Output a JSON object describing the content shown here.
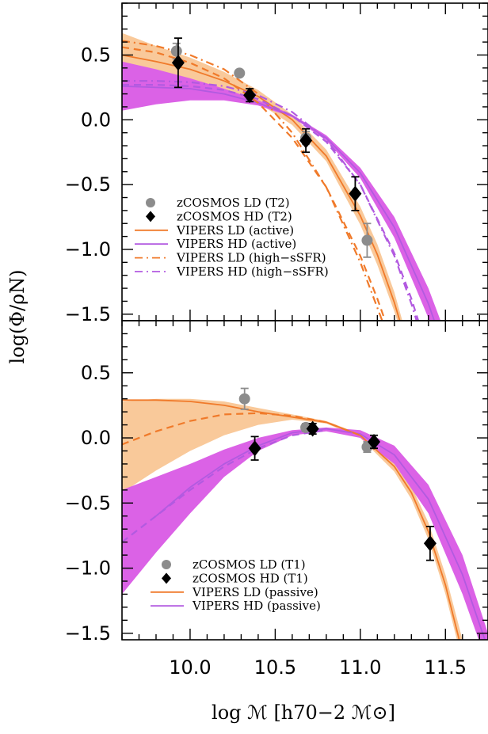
{
  "figure": {
    "ylabel": "log(Φ/ρN)",
    "xlabel": "log ℳ [h70−2 ℳ⊙]"
  },
  "colors": {
    "ld": "#f07a2a",
    "ld_band": "#f9c99a",
    "hd": "#b25ae0",
    "hd_band": "#db62e6",
    "zcosmos_ld": "#8c8c8c",
    "zcosmos_hd": "#000000"
  },
  "chart_data": [
    {
      "type": "line",
      "panel": "top",
      "xlim": [
        9.6,
        11.75
      ],
      "ylim": [
        -1.55,
        0.9
      ],
      "x_ticks": [
        "10.0",
        "10.5",
        "11.0",
        "11.5"
      ],
      "y_ticks": [
        "0.5",
        "0.0",
        "−0.5",
        "−1.0",
        "−1.5"
      ],
      "legend_position": "bottom-left",
      "legend": [
        "zCOSMOS LD (T2)",
        "zCOSMOS HD (T2)",
        "VIPERS LD (active)",
        "VIPERS HD (active)",
        "VIPERS LD (high−sSFR)",
        "VIPERS HD (high−sSFR)"
      ],
      "points": [
        {
          "name": "zCOSMOS LD (T2)",
          "marker": "circle",
          "color": "#8c8c8c",
          "x": [
            9.92,
            10.29,
            10.68,
            11.04
          ],
          "y": [
            0.53,
            0.36,
            -0.14,
            -0.93
          ],
          "err": [
            0.06,
            0.02,
            0.05,
            0.13
          ]
        },
        {
          "name": "zCOSMOS HD (T2)",
          "marker": "diamond",
          "color": "#000000",
          "x": [
            9.93,
            10.35,
            10.68,
            10.97
          ],
          "y": [
            0.44,
            0.19,
            -0.16,
            -0.57
          ],
          "err": [
            0.19,
            0.05,
            0.09,
            0.13
          ]
        }
      ],
      "bands": [
        {
          "name": "VIPERS LD (active)",
          "color": "#f9c99a",
          "x": [
            9.6,
            9.8,
            10.0,
            10.2,
            10.4,
            10.6,
            10.8,
            11.0,
            11.1,
            11.2,
            11.3
          ],
          "lower": [
            0.37,
            0.35,
            0.31,
            0.24,
            0.13,
            -0.04,
            -0.32,
            -0.81,
            -1.12,
            -1.48,
            -1.9
          ],
          "upper": [
            0.67,
            0.57,
            0.48,
            0.37,
            0.23,
            0.04,
            -0.23,
            -0.67,
            -0.96,
            -1.33,
            -1.8
          ]
        },
        {
          "name": "VIPERS HD (active)",
          "color": "#db62e6",
          "x": [
            9.6,
            9.8,
            10.0,
            10.2,
            10.4,
            10.6,
            10.8,
            11.0,
            11.2,
            11.4,
            11.5
          ],
          "lower": [
            0.07,
            0.12,
            0.15,
            0.15,
            0.11,
            0.02,
            -0.16,
            -0.45,
            -0.91,
            -1.53,
            -1.95
          ],
          "upper": [
            0.45,
            0.39,
            0.32,
            0.24,
            0.15,
            0.04,
            -0.12,
            -0.37,
            -0.75,
            -1.3,
            -1.65
          ]
        }
      ],
      "series": [
        {
          "name": "VIPERS LD (active)",
          "style": "solid",
          "color": "#f07a2a",
          "x": [
            9.6,
            9.8,
            10.0,
            10.2,
            10.4,
            10.6,
            10.8,
            11.0,
            11.1,
            11.2,
            11.3
          ],
          "y": [
            0.5,
            0.45,
            0.39,
            0.3,
            0.18,
            0.0,
            -0.28,
            -0.74,
            -1.04,
            -1.41,
            -1.85
          ]
        },
        {
          "name": "VIPERS HD (active)",
          "style": "solid",
          "color": "#b25ae0",
          "x": [
            9.6,
            9.8,
            10.0,
            10.2,
            10.4,
            10.6,
            10.8,
            11.0,
            11.2,
            11.4,
            11.5
          ],
          "y": [
            0.26,
            0.25,
            0.24,
            0.2,
            0.13,
            0.03,
            -0.14,
            -0.41,
            -0.83,
            -1.42,
            -1.8
          ]
        },
        {
          "name": "VIPERS LD (high−sSFR)",
          "style": "dashdot",
          "color": "#f07a2a",
          "x": [
            9.6,
            9.8,
            10.0,
            10.2,
            10.4,
            10.6,
            10.8,
            11.0,
            11.1,
            11.2
          ],
          "y": [
            0.61,
            0.57,
            0.5,
            0.39,
            0.2,
            -0.1,
            -0.52,
            -1.1,
            -1.45,
            -1.8
          ]
        },
        {
          "name": "VIPERS HD (high−sSFR)",
          "style": "dashdot",
          "color": "#b25ae0",
          "x": [
            9.6,
            9.8,
            10.0,
            10.2,
            10.4,
            10.6,
            10.8,
            11.0,
            11.2,
            11.3,
            11.4
          ],
          "y": [
            0.3,
            0.3,
            0.29,
            0.26,
            0.19,
            0.06,
            -0.15,
            -0.5,
            -1.05,
            -1.42,
            -1.85
          ]
        },
        {
          "name": "",
          "style": "dashed",
          "color": "#f07a2a",
          "x": [
            9.6,
            9.8,
            10.0,
            10.2,
            10.4,
            10.6,
            10.8,
            11.0,
            11.1,
            11.2
          ],
          "y": [
            0.56,
            0.52,
            0.44,
            0.32,
            0.13,
            -0.14,
            -0.52,
            -1.05,
            -1.38,
            -1.75
          ]
        },
        {
          "name": "",
          "style": "dashed",
          "color": "#b25ae0",
          "x": [
            9.6,
            9.8,
            10.0,
            10.2,
            10.4,
            10.6,
            10.8,
            11.0,
            11.2,
            11.3,
            11.4
          ],
          "y": [
            0.27,
            0.27,
            0.26,
            0.23,
            0.16,
            0.03,
            -0.17,
            -0.5,
            -1.03,
            -1.38,
            -1.8
          ]
        }
      ]
    },
    {
      "type": "line",
      "panel": "bottom",
      "xlim": [
        9.6,
        11.75
      ],
      "ylim": [
        -1.55,
        0.9
      ],
      "x_ticks": [
        "10.0",
        "10.5",
        "11.0",
        "11.5"
      ],
      "y_ticks": [
        "0.5",
        "0.0",
        "−0.5",
        "−1.0",
        "−1.5"
      ],
      "legend_position": "bottom-left",
      "legend": [
        "zCOSMOS LD (T1)",
        "zCOSMOS HD (T1)",
        "VIPERS LD (passive)",
        "VIPERS HD (passive)"
      ],
      "points": [
        {
          "name": "zCOSMOS LD (T1)",
          "marker": "circle",
          "color": "#8c8c8c",
          "x": [
            10.32,
            10.68,
            11.04
          ],
          "y": [
            0.3,
            0.08,
            -0.07
          ],
          "err": [
            0.08,
            0.03,
            0.04
          ]
        },
        {
          "name": "zCOSMOS HD (T1)",
          "marker": "diamond",
          "color": "#000000",
          "x": [
            10.38,
            10.72,
            11.08,
            11.41
          ],
          "y": [
            -0.08,
            0.07,
            -0.03,
            -0.81
          ],
          "err": [
            0.09,
            0.04,
            0.05,
            0.13
          ]
        }
      ],
      "bands": [
        {
          "name": "VIPERS LD (passive)",
          "color": "#f9c99a",
          "x": [
            9.6,
            9.8,
            10.0,
            10.2,
            10.4,
            10.6,
            10.8,
            11.0,
            11.2,
            11.3,
            11.4,
            11.5,
            11.6
          ],
          "lower": [
            -0.42,
            -0.25,
            -0.1,
            0.02,
            0.1,
            0.14,
            0.11,
            0.0,
            -0.26,
            -0.47,
            -0.78,
            -1.2,
            -1.72
          ],
          "upper": [
            0.28,
            0.3,
            0.3,
            0.28,
            0.23,
            0.18,
            0.13,
            0.03,
            -0.18,
            -0.37,
            -0.65,
            -1.05,
            -1.55
          ]
        },
        {
          "name": "VIPERS HD (passive)",
          "color": "#db62e6",
          "x": [
            9.6,
            9.8,
            10.0,
            10.2,
            10.4,
            10.6,
            10.8,
            11.0,
            11.2,
            11.4,
            11.6,
            11.75
          ],
          "lower": [
            -1.2,
            -0.88,
            -0.58,
            -0.3,
            -0.1,
            0.02,
            0.05,
            0.0,
            -0.2,
            -0.58,
            -1.2,
            -1.75
          ],
          "upper": [
            -0.4,
            -0.3,
            -0.2,
            -0.09,
            0.0,
            0.06,
            0.08,
            0.06,
            -0.06,
            -0.36,
            -0.9,
            -1.5
          ]
        }
      ],
      "series": [
        {
          "name": "VIPERS LD (passive)",
          "style": "solid",
          "color": "#f07a2a",
          "x": [
            9.6,
            9.8,
            10.0,
            10.2,
            10.4,
            10.6,
            10.8,
            11.0,
            11.2,
            11.3,
            11.4,
            11.5,
            11.6
          ],
          "y": [
            0.29,
            0.29,
            0.28,
            0.25,
            0.2,
            0.16,
            0.12,
            0.02,
            -0.22,
            -0.42,
            -0.72,
            -1.13,
            -1.65
          ]
        },
        {
          "name": "VIPERS HD (passive)",
          "style": "solid",
          "color": "#b25ae0",
          "x": [
            9.8,
            10.0,
            10.2,
            10.4,
            10.6,
            10.8,
            11.0,
            11.2,
            11.4,
            11.6,
            11.75
          ],
          "y": [
            -0.6,
            -0.38,
            -0.2,
            -0.06,
            0.04,
            0.07,
            0.03,
            -0.13,
            -0.47,
            -1.05,
            -1.62
          ]
        },
        {
          "name": "",
          "style": "dashed",
          "color": "#f07a2a",
          "x": [
            9.6,
            9.8,
            10.0,
            10.2,
            10.4,
            10.6,
            10.8,
            11.0
          ],
          "y": [
            -0.05,
            0.05,
            0.13,
            0.18,
            0.19,
            0.17,
            0.12,
            0.02
          ]
        },
        {
          "name": "",
          "style": "dashed",
          "color": "#b25ae0",
          "x": [
            9.6,
            9.8,
            10.0,
            10.2,
            10.4,
            10.6,
            10.8
          ],
          "y": [
            -0.8,
            -0.6,
            -0.4,
            -0.22,
            -0.08,
            0.02,
            0.06
          ]
        }
      ]
    }
  ]
}
